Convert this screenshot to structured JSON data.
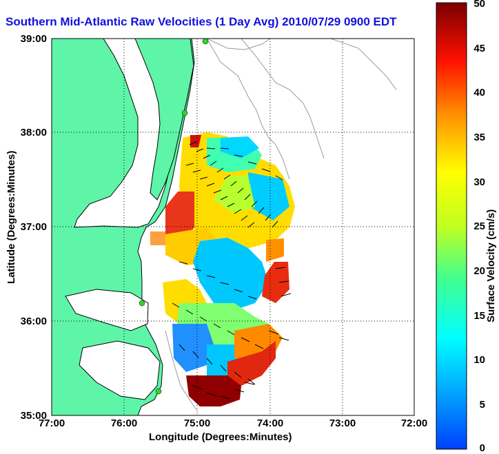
{
  "title": "Southern Mid-Atlantic Raw Velocities (1 Day Avg) 2010/07/29 0900 EDT",
  "map": {
    "x_axis_label": "Longitude (Degrees:Minutes)",
    "y_axis_label": "Latitude (Degrees:Minutes)",
    "x_ticks": [
      "77:00",
      "76:00",
      "75:00",
      "74:00",
      "73:00",
      "72:00"
    ],
    "y_ticks": [
      "39:00",
      "38:00",
      "37:00",
      "36:00",
      "35:00"
    ],
    "grid": "dotted",
    "land_color": "#5ef5a8",
    "coastline_color": "#000000",
    "bathymetry_color": "#9a9a9a",
    "station_color": "#2ed62e",
    "velocity_vector_color": "#000000"
  },
  "colorbar": {
    "label": "Surface Velocity (cm/s)",
    "ticks": [
      "50",
      "45",
      "40",
      "35",
      "30",
      "25",
      "20",
      "15",
      "10",
      "5",
      "0"
    ],
    "min": 0,
    "max": 50,
    "colormap": "jet"
  }
}
